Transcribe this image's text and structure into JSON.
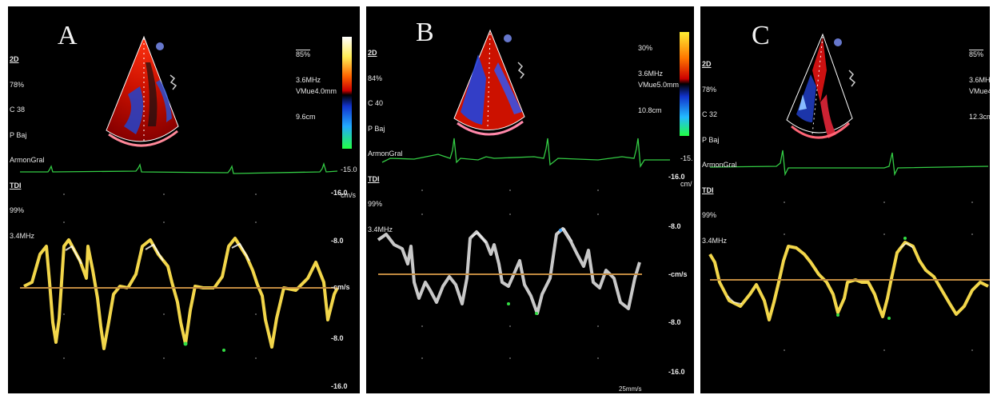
{
  "panels": [
    {
      "label": "A",
      "params_top": [
        "2D",
        "78%",
        "C 38",
        "P Baj",
        "ArmonGral"
      ],
      "params_tdi": [
        "TDI",
        "99%",
        "3.4MHz"
      ],
      "power": "85%",
      "freq": "3.6MHz",
      "vmue": "VMue4.0mm",
      "depth": "9.6cm",
      "scale_min": "-15.0",
      "scale_unit": "cm/s",
      "ticks": [
        "-16.0",
        "-8.0",
        "-cm/s",
        "-8.0",
        "-16.0"
      ]
    },
    {
      "label": "B",
      "params_top": [
        "2D",
        "84%",
        "C 40",
        "P Baj",
        "ArmonGral"
      ],
      "params_tdi": [
        "TDI",
        "99%",
        "3.4MHz"
      ],
      "power": "30%",
      "freq": "3.6MHz",
      "vmue": "VMue5.0mm",
      "depth": "10.8cm",
      "scale_min": "-15.",
      "scale_unit": "cm/",
      "ticks": [
        "-16.0",
        "-8.0",
        "-cm/s",
        "-8.0",
        "-16.0"
      ],
      "speed": "25mm/s"
    },
    {
      "label": "C",
      "params_top": [
        "2D",
        "78%",
        "C 32",
        "P Baj",
        "ArmonGral"
      ],
      "params_tdi": [
        "TDI",
        "99%",
        "3.4MHz"
      ],
      "power": "85%",
      "freq": "3.6MHz",
      "vmue": "VMue4",
      "depth": "12.3cm"
    }
  ]
}
